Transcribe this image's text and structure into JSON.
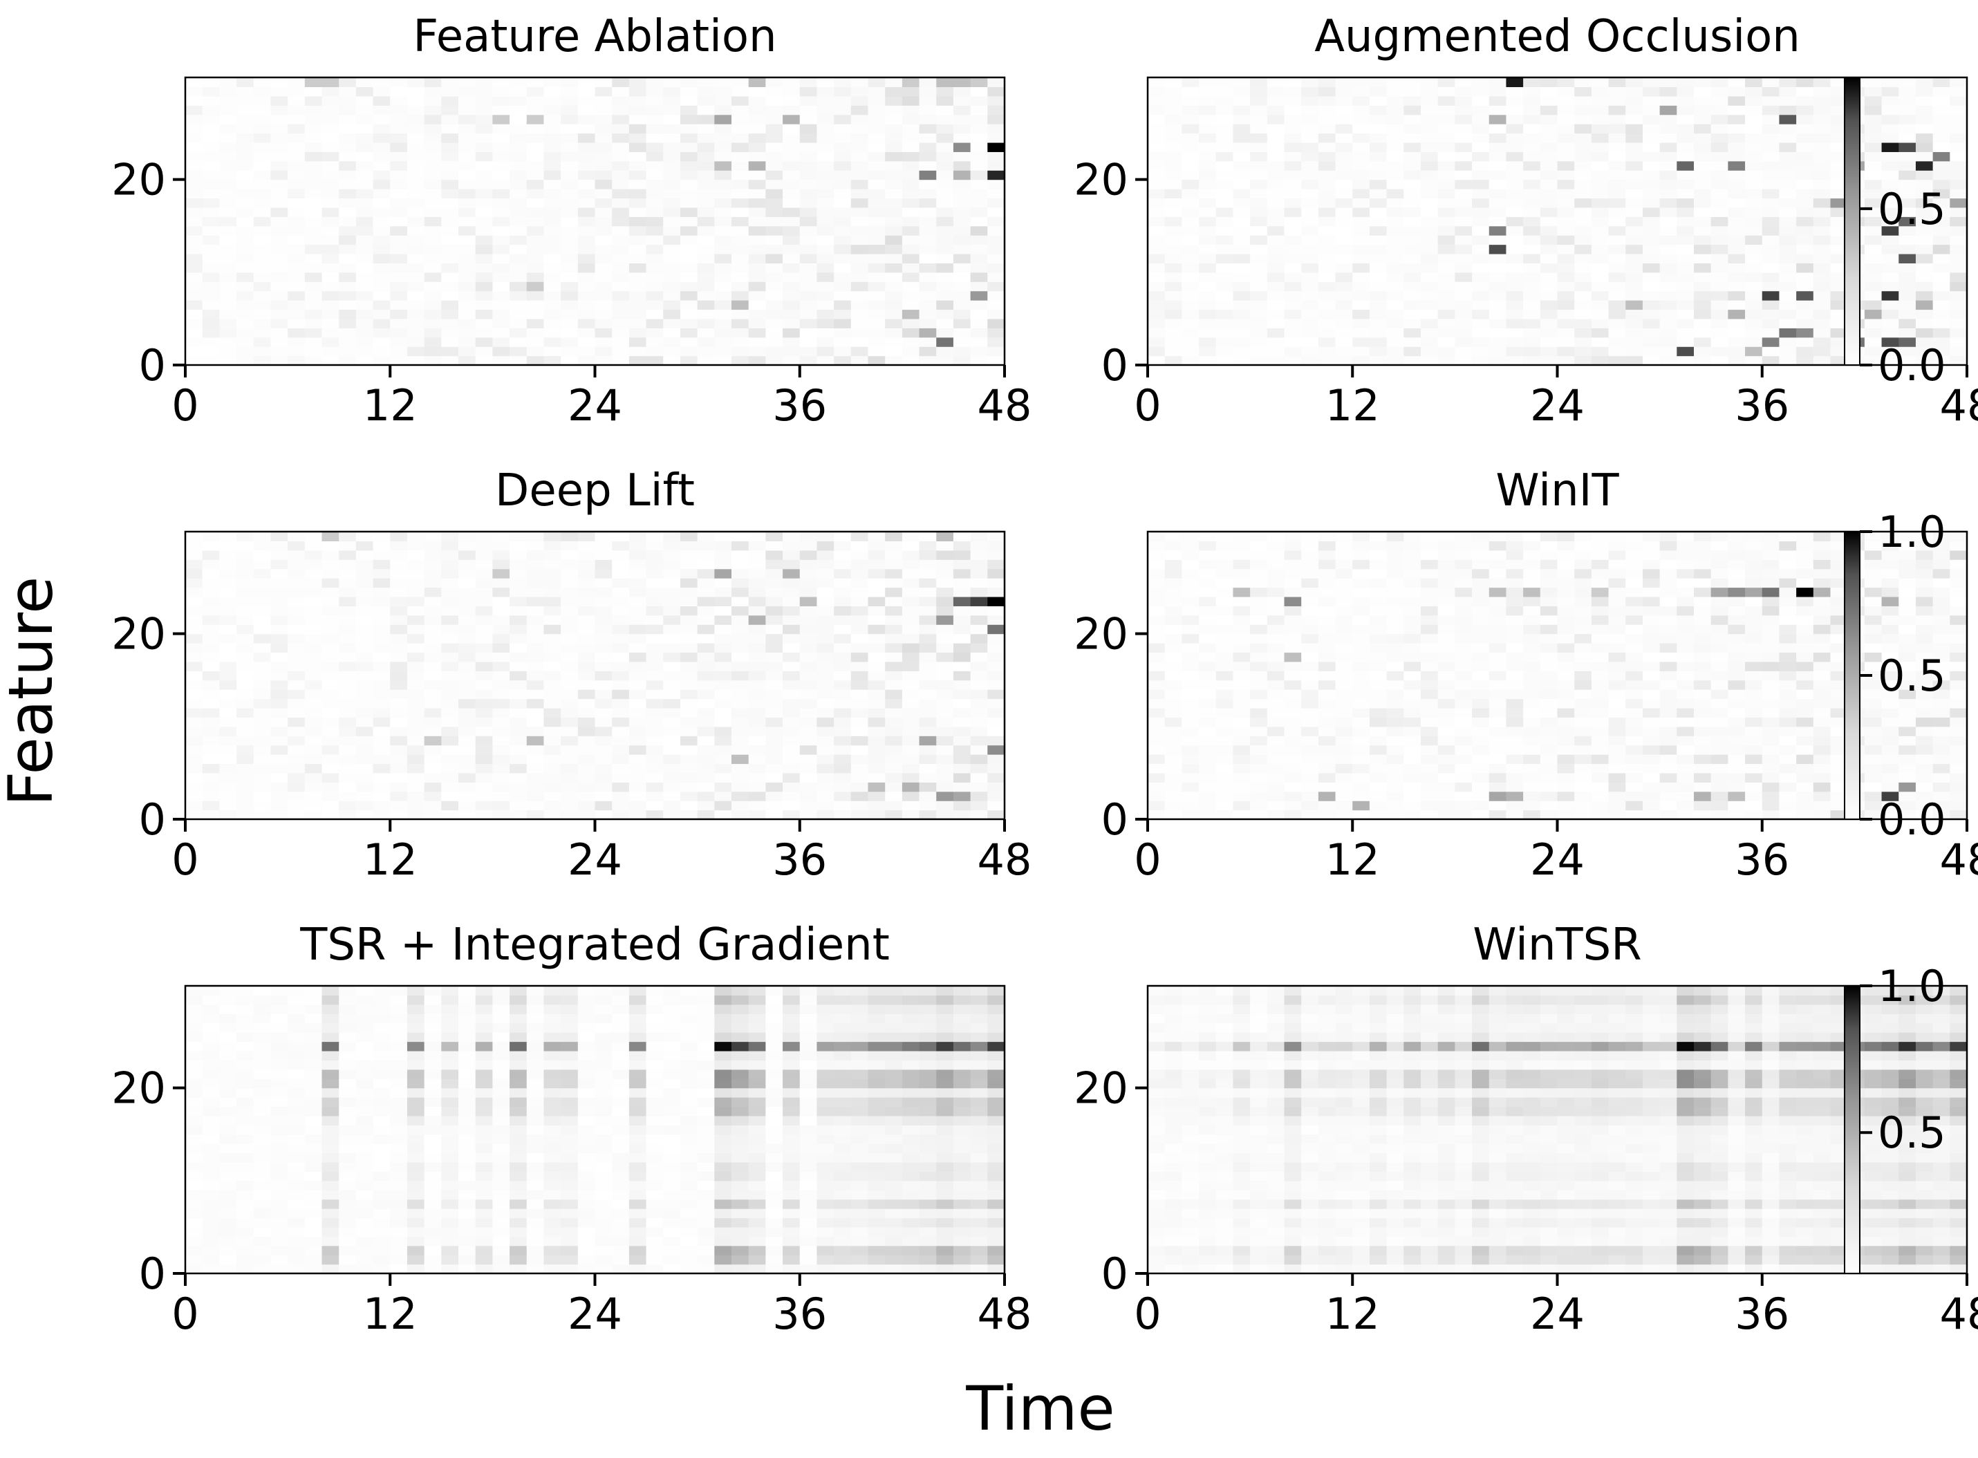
{
  "figure": {
    "xlabel": "Time",
    "ylabel": "Feature"
  },
  "chart_data": [
    {
      "type": "heatmap",
      "title": "Feature Ablation",
      "x_ticks": [
        "0",
        "12",
        "24",
        "36",
        "48"
      ],
      "y_ticks": [
        "0",
        "20"
      ],
      "xlim": [
        0,
        48
      ],
      "ylim": [
        0,
        31
      ],
      "n_time": 48,
      "n_feature": 31,
      "colormap": "Greys",
      "hotspots": [
        {
          "t": 47,
          "f": 23,
          "v": 1.0
        },
        {
          "t": 47,
          "f": 20,
          "v": 0.85
        },
        {
          "t": 44,
          "f": 2,
          "v": 0.55
        },
        {
          "t": 43,
          "f": 20,
          "v": 0.5
        },
        {
          "t": 45,
          "f": 23,
          "v": 0.45
        },
        {
          "t": 46,
          "f": 7,
          "v": 0.4
        },
        {
          "t": 31,
          "f": 26,
          "v": 0.35
        },
        {
          "t": 35,
          "f": 26,
          "v": 0.3
        },
        {
          "t": 33,
          "f": 21,
          "v": 0.3
        },
        {
          "t": 31,
          "f": 21,
          "v": 0.25
        },
        {
          "t": 43,
          "f": 3,
          "v": 0.3
        },
        {
          "t": 44,
          "f": 30,
          "v": 0.25
        },
        {
          "t": 45,
          "f": 30,
          "v": 0.25
        },
        {
          "t": 46,
          "f": 30,
          "v": 0.2
        },
        {
          "t": 42,
          "f": 30,
          "v": 0.2
        },
        {
          "t": 18,
          "f": 26,
          "v": 0.2
        },
        {
          "t": 20,
          "f": 26,
          "v": 0.2
        },
        {
          "t": 8,
          "f": 30,
          "v": 0.2
        },
        {
          "t": 7,
          "f": 30,
          "v": 0.2
        },
        {
          "t": 33,
          "f": 30,
          "v": 0.25
        },
        {
          "t": 32,
          "f": 6,
          "v": 0.25
        },
        {
          "t": 20,
          "f": 8,
          "v": 0.2
        },
        {
          "t": 42,
          "f": 5,
          "v": 0.25
        },
        {
          "t": 45,
          "f": 20,
          "v": 0.3
        }
      ]
    },
    {
      "type": "heatmap",
      "title": "Augmented Occlusion",
      "x_ticks": [
        "0",
        "12",
        "24",
        "36",
        "48"
      ],
      "y_ticks": [
        "0",
        "20"
      ],
      "xlim": [
        0,
        48
      ],
      "ylim": [
        0,
        31
      ],
      "n_time": 48,
      "n_feature": 31,
      "colormap": "Greys",
      "hotspots": [
        {
          "t": 21,
          "f": 30,
          "v": 0.9
        },
        {
          "t": 43,
          "f": 23,
          "v": 0.9
        },
        {
          "t": 45,
          "f": 21,
          "v": 0.85
        },
        {
          "t": 44,
          "f": 23,
          "v": 0.7
        },
        {
          "t": 43,
          "f": 14,
          "v": 0.75
        },
        {
          "t": 44,
          "f": 15,
          "v": 0.6
        },
        {
          "t": 44,
          "f": 11,
          "v": 0.65
        },
        {
          "t": 43,
          "f": 7,
          "v": 0.8
        },
        {
          "t": 36,
          "f": 7,
          "v": 0.75
        },
        {
          "t": 38,
          "f": 7,
          "v": 0.65
        },
        {
          "t": 37,
          "f": 26,
          "v": 0.65
        },
        {
          "t": 31,
          "f": 21,
          "v": 0.6
        },
        {
          "t": 34,
          "f": 21,
          "v": 0.5
        },
        {
          "t": 37,
          "f": 3,
          "v": 0.55
        },
        {
          "t": 38,
          "f": 3,
          "v": 0.45
        },
        {
          "t": 31,
          "f": 1,
          "v": 0.7
        },
        {
          "t": 36,
          "f": 2,
          "v": 0.5
        },
        {
          "t": 41,
          "f": 2,
          "v": 0.55
        },
        {
          "t": 43,
          "f": 2,
          "v": 0.7
        },
        {
          "t": 44,
          "f": 2,
          "v": 0.6
        },
        {
          "t": 20,
          "f": 12,
          "v": 0.7
        },
        {
          "t": 20,
          "f": 14,
          "v": 0.5
        },
        {
          "t": 40,
          "f": 17,
          "v": 0.4
        },
        {
          "t": 47,
          "f": 17,
          "v": 0.35
        },
        {
          "t": 46,
          "f": 22,
          "v": 0.5
        },
        {
          "t": 41,
          "f": 21,
          "v": 0.35
        },
        {
          "t": 30,
          "f": 27,
          "v": 0.35
        },
        {
          "t": 20,
          "f": 26,
          "v": 0.3
        },
        {
          "t": 45,
          "f": 6,
          "v": 0.3
        },
        {
          "t": 42,
          "f": 5,
          "v": 0.3
        },
        {
          "t": 34,
          "f": 5,
          "v": 0.3
        },
        {
          "t": 28,
          "f": 6,
          "v": 0.25
        },
        {
          "t": 35,
          "f": 1,
          "v": 0.25
        }
      ]
    },
    {
      "type": "heatmap",
      "title": "Deep Lift",
      "x_ticks": [
        "0",
        "12",
        "24",
        "36",
        "48"
      ],
      "y_ticks": [
        "0",
        "20"
      ],
      "xlim": [
        0,
        48
      ],
      "ylim": [
        0,
        31
      ],
      "n_time": 48,
      "n_feature": 31,
      "colormap": "Greys",
      "hotspots": [
        {
          "t": 47,
          "f": 23,
          "v": 1.0
        },
        {
          "t": 46,
          "f": 23,
          "v": 0.75
        },
        {
          "t": 45,
          "f": 23,
          "v": 0.6
        },
        {
          "t": 47,
          "f": 20,
          "v": 0.55
        },
        {
          "t": 44,
          "f": 21,
          "v": 0.4
        },
        {
          "t": 47,
          "f": 7,
          "v": 0.45
        },
        {
          "t": 43,
          "f": 8,
          "v": 0.35
        },
        {
          "t": 44,
          "f": 2,
          "v": 0.4
        },
        {
          "t": 45,
          "f": 2,
          "v": 0.35
        },
        {
          "t": 31,
          "f": 26,
          "v": 0.35
        },
        {
          "t": 33,
          "f": 21,
          "v": 0.3
        },
        {
          "t": 35,
          "f": 26,
          "v": 0.3
        },
        {
          "t": 36,
          "f": 23,
          "v": 0.25
        },
        {
          "t": 40,
          "f": 3,
          "v": 0.25
        },
        {
          "t": 42,
          "f": 3,
          "v": 0.3
        },
        {
          "t": 32,
          "f": 6,
          "v": 0.25
        },
        {
          "t": 20,
          "f": 8,
          "v": 0.25
        },
        {
          "t": 18,
          "f": 26,
          "v": 0.2
        },
        {
          "t": 44,
          "f": 30,
          "v": 0.25
        },
        {
          "t": 8,
          "f": 30,
          "v": 0.2
        },
        {
          "t": 14,
          "f": 8,
          "v": 0.2
        }
      ]
    },
    {
      "type": "heatmap",
      "title": "WinIT",
      "x_ticks": [
        "0",
        "12",
        "24",
        "36",
        "48"
      ],
      "y_ticks": [
        "0",
        "20"
      ],
      "xlim": [
        0,
        48
      ],
      "ylim": [
        0,
        31
      ],
      "n_time": 48,
      "n_feature": 31,
      "colormap": "Greys",
      "hotspots": [
        {
          "t": 38,
          "f": 24,
          "v": 1.0
        },
        {
          "t": 36,
          "f": 24,
          "v": 0.55
        },
        {
          "t": 34,
          "f": 24,
          "v": 0.45
        },
        {
          "t": 35,
          "f": 24,
          "v": 0.35
        },
        {
          "t": 33,
          "f": 24,
          "v": 0.35
        },
        {
          "t": 43,
          "f": 2,
          "v": 0.75
        },
        {
          "t": 44,
          "f": 3,
          "v": 0.4
        },
        {
          "t": 8,
          "f": 23,
          "v": 0.45
        },
        {
          "t": 5,
          "f": 24,
          "v": 0.25
        },
        {
          "t": 20,
          "f": 2,
          "v": 0.35
        },
        {
          "t": 21,
          "f": 2,
          "v": 0.3
        },
        {
          "t": 10,
          "f": 2,
          "v": 0.3
        },
        {
          "t": 12,
          "f": 1,
          "v": 0.3
        },
        {
          "t": 8,
          "f": 17,
          "v": 0.25
        },
        {
          "t": 32,
          "f": 2,
          "v": 0.3
        },
        {
          "t": 34,
          "f": 2,
          "v": 0.25
        },
        {
          "t": 22,
          "f": 24,
          "v": 0.25
        },
        {
          "t": 20,
          "f": 24,
          "v": 0.25
        },
        {
          "t": 39,
          "f": 24,
          "v": 0.3
        },
        {
          "t": 43,
          "f": 23,
          "v": 0.3
        },
        {
          "t": 26,
          "f": 24,
          "v": 0.2
        }
      ]
    },
    {
      "type": "heatmap",
      "title": "TSR + Integrated Gradient",
      "x_ticks": [
        "0",
        "12",
        "24",
        "36",
        "48"
      ],
      "y_ticks": [
        "0",
        "20"
      ],
      "xlim": [
        0,
        48
      ],
      "ylim": [
        0,
        31
      ],
      "n_time": 48,
      "n_feature": 31,
      "colormap": "Greys",
      "time_weights": [
        0,
        0,
        0,
        0,
        0,
        0,
        0,
        0,
        0.55,
        0,
        0,
        0,
        0,
        0.45,
        0,
        0.25,
        0,
        0.3,
        0,
        0.55,
        0,
        0.3,
        0.3,
        0,
        0,
        0,
        0.45,
        0,
        0,
        0,
        0,
        0.95,
        0.75,
        0.55,
        0,
        0.45,
        0,
        0.35,
        0.35,
        0.35,
        0.45,
        0.45,
        0.5,
        0.55,
        0.75,
        0.55,
        0.45,
        0.75
      ],
      "feature_weights": [
        0.05,
        0.3,
        0.35,
        0.05,
        0.05,
        0.12,
        0.05,
        0.25,
        0.05,
        0.05,
        0.12,
        0.12,
        0.05,
        0.05,
        0.05,
        0.05,
        0.12,
        0.3,
        0.3,
        0.1,
        0.45,
        0.45,
        0.05,
        0.1,
        1.0,
        0.15,
        0.08,
        0.08,
        0.12,
        0.25,
        0.15
      ]
    },
    {
      "type": "heatmap",
      "title": "WinTSR",
      "x_ticks": [
        "0",
        "12",
        "24",
        "36",
        "48"
      ],
      "y_ticks": [
        "0",
        "20"
      ],
      "xlim": [
        0,
        48
      ],
      "ylim": [
        0,
        31
      ],
      "n_time": 48,
      "n_feature": 31,
      "colormap": "Greys",
      "time_weights": [
        0.05,
        0.08,
        0.05,
        0.08,
        0.05,
        0.2,
        0.05,
        0.1,
        0.45,
        0.1,
        0.15,
        0.15,
        0.1,
        0.3,
        0.1,
        0.3,
        0.15,
        0.3,
        0.15,
        0.55,
        0.25,
        0.35,
        0.35,
        0.3,
        0.3,
        0.3,
        0.35,
        0.3,
        0.3,
        0.2,
        0.2,
        0.95,
        0.8,
        0.55,
        0.15,
        0.5,
        0.15,
        0.4,
        0.4,
        0.4,
        0.45,
        0.45,
        0.5,
        0.55,
        0.8,
        0.55,
        0.45,
        0.75
      ],
      "feature_weights": [
        0.05,
        0.3,
        0.35,
        0.05,
        0.05,
        0.12,
        0.05,
        0.25,
        0.05,
        0.05,
        0.12,
        0.12,
        0.05,
        0.05,
        0.05,
        0.05,
        0.12,
        0.3,
        0.3,
        0.1,
        0.45,
        0.45,
        0.05,
        0.1,
        1.0,
        0.15,
        0.08,
        0.08,
        0.12,
        0.25,
        0.15
      ]
    }
  ],
  "colorbars": [
    {
      "ticks": [
        "0.0",
        "0.5"
      ],
      "values": [
        0.0,
        0.5
      ],
      "vmin": 0.0,
      "vmax": 0.92
    },
    {
      "ticks": [
        "0.0",
        "0.5",
        "1.0"
      ],
      "values": [
        0.0,
        0.5,
        1.0
      ],
      "vmin": 0.0,
      "vmax": 1.0
    },
    {
      "ticks": [
        "0.5",
        "1.0"
      ],
      "values": [
        0.5,
        1.0
      ],
      "vmin": 0.02,
      "vmax": 1.0
    }
  ]
}
